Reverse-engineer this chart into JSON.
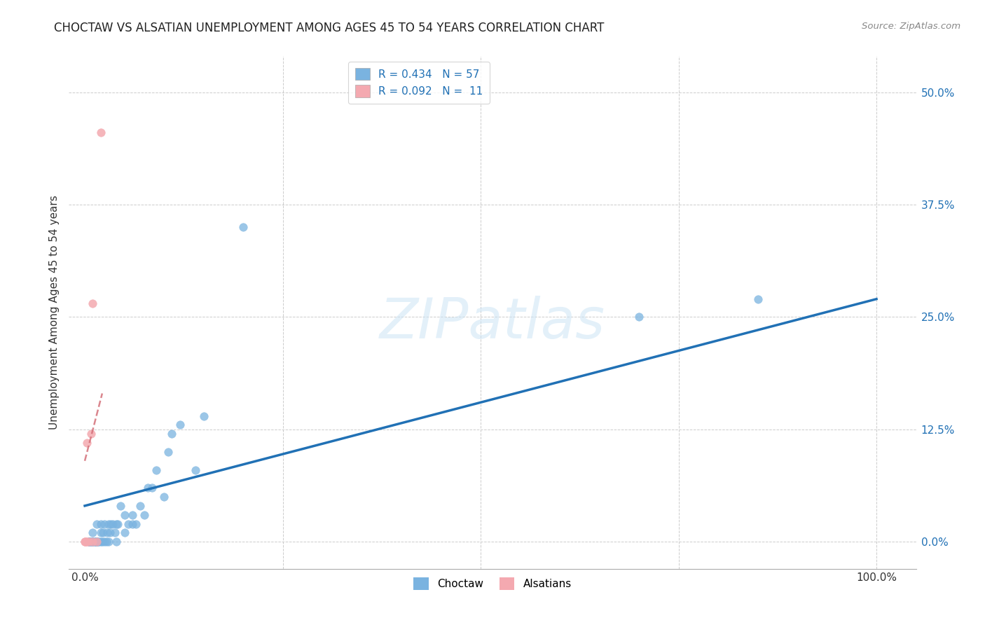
{
  "title": "CHOCTAW VS ALSATIAN UNEMPLOYMENT AMONG AGES 45 TO 54 YEARS CORRELATION CHART",
  "source": "Source: ZipAtlas.com",
  "ylabel_label": "Unemployment Among Ages 45 to 54 years",
  "xlim": [
    -0.02,
    1.05
  ],
  "ylim": [
    -0.03,
    0.54
  ],
  "ytick_vals": [
    0.0,
    0.125,
    0.25,
    0.375,
    0.5
  ],
  "ytick_labels": [
    "0.0%",
    "12.5%",
    "25.0%",
    "37.5%",
    "50.0%"
  ],
  "xtick_vals": [
    0.0,
    1.0
  ],
  "xtick_labels": [
    "0.0%",
    "100.0%"
  ],
  "extra_xticks": [
    0.25,
    0.5,
    0.75
  ],
  "choctaw_color": "#7ab3e0",
  "alsatian_color": "#f4a9b0",
  "line_blue": "#2171b5",
  "line_pink": "#d4717a",
  "choctaw_x": [
    0.005,
    0.005,
    0.005,
    0.007,
    0.008,
    0.01,
    0.01,
    0.01,
    0.01,
    0.012,
    0.013,
    0.013,
    0.015,
    0.015,
    0.015,
    0.015,
    0.017,
    0.018,
    0.02,
    0.02,
    0.02,
    0.022,
    0.023,
    0.025,
    0.025,
    0.027,
    0.028,
    0.03,
    0.03,
    0.032,
    0.033,
    0.035,
    0.038,
    0.04,
    0.04,
    0.042,
    0.045,
    0.05,
    0.05,
    0.055,
    0.06,
    0.06,
    0.065,
    0.07,
    0.075,
    0.08,
    0.085,
    0.09,
    0.1,
    0.105,
    0.11,
    0.12,
    0.14,
    0.15,
    0.2,
    0.7,
    0.85
  ],
  "choctaw_y": [
    0.0,
    0.0,
    0.0,
    0.0,
    0.0,
    0.0,
    0.0,
    0.0,
    0.01,
    0.0,
    0.0,
    0.0,
    0.0,
    0.0,
    0.0,
    0.02,
    0.0,
    0.0,
    0.0,
    0.01,
    0.02,
    0.0,
    0.01,
    0.0,
    0.02,
    0.0,
    0.01,
    0.0,
    0.02,
    0.01,
    0.02,
    0.02,
    0.01,
    0.0,
    0.02,
    0.02,
    0.04,
    0.01,
    0.03,
    0.02,
    0.02,
    0.03,
    0.02,
    0.04,
    0.03,
    0.06,
    0.06,
    0.08,
    0.05,
    0.1,
    0.12,
    0.13,
    0.08,
    0.14,
    0.35,
    0.25,
    0.27
  ],
  "alsatian_x": [
    0.0,
    0.0,
    0.002,
    0.003,
    0.003,
    0.005,
    0.008,
    0.01,
    0.01,
    0.015,
    0.02
  ],
  "alsatian_y": [
    0.0,
    0.0,
    0.0,
    0.0,
    0.11,
    0.0,
    0.12,
    0.0,
    0.265,
    0.0,
    0.455
  ],
  "blue_line_x": [
    0.0,
    1.0
  ],
  "blue_line_y": [
    0.04,
    0.27
  ],
  "pink_line_x": [
    0.0,
    0.022
  ],
  "pink_line_y": [
    0.09,
    0.165
  ],
  "watermark_text": "ZIPatlas",
  "background_color": "#ffffff",
  "grid_color": "#cccccc",
  "title_fontsize": 12,
  "axis_label_fontsize": 11,
  "tick_fontsize": 11,
  "legend_fontsize": 11
}
